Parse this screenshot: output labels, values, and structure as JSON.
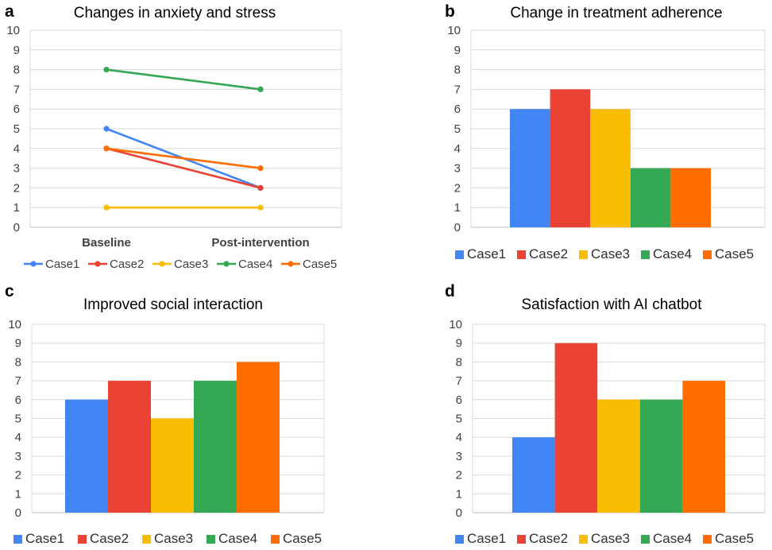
{
  "colors": {
    "Case1": "#4285F4",
    "Case2": "#EA4335",
    "Case3": "#FBBC04",
    "Case4": "#34A853",
    "Case5": "#FF6D01"
  },
  "chart_data": [
    {
      "panel": "a",
      "type": "line",
      "title": "Changes in anxiety and stress",
      "categories": [
        "Baseline",
        "Post-intervention"
      ],
      "ylim": [
        0,
        10
      ],
      "yticks": [
        "0",
        "1",
        "2",
        "3",
        "4",
        "5",
        "6",
        "7",
        "8",
        "9",
        "10"
      ],
      "series": [
        {
          "name": "Case1",
          "values": [
            5,
            2
          ]
        },
        {
          "name": "Case2",
          "values": [
            4,
            2
          ]
        },
        {
          "name": "Case3",
          "values": [
            1,
            1
          ]
        },
        {
          "name": "Case4",
          "values": [
            8,
            7
          ]
        },
        {
          "name": "Case5",
          "values": [
            4,
            3
          ]
        }
      ],
      "legend": "bottom"
    },
    {
      "panel": "b",
      "type": "bar",
      "title": "Change in treatment adherence",
      "categories": [
        "Case1",
        "Case2",
        "Case3",
        "Case4",
        "Case5"
      ],
      "values": [
        6,
        7,
        6,
        3,
        3
      ],
      "ylim": [
        0,
        10
      ],
      "yticks": [
        "0",
        "1",
        "2",
        "3",
        "4",
        "5",
        "6",
        "7",
        "8",
        "9",
        "10"
      ],
      "legend": "bottom"
    },
    {
      "panel": "c",
      "type": "bar",
      "title": "Improved social interaction",
      "categories": [
        "Case1",
        "Case2",
        "Case3",
        "Case4",
        "Case5"
      ],
      "values": [
        6,
        7,
        5,
        7,
        8
      ],
      "ylim": [
        0,
        10
      ],
      "yticks": [
        "0",
        "1",
        "2",
        "3",
        "4",
        "5",
        "6",
        "7",
        "8",
        "9",
        "10"
      ],
      "legend": "bottom"
    },
    {
      "panel": "d",
      "type": "bar",
      "title": "Satisfaction with AI chatbot",
      "categories": [
        "Case1",
        "Case2",
        "Case3",
        "Case4",
        "Case5"
      ],
      "values": [
        4,
        9,
        6,
        6,
        7
      ],
      "ylim": [
        0,
        10
      ],
      "yticks": [
        "0",
        "1",
        "2",
        "3",
        "4",
        "5",
        "6",
        "7",
        "8",
        "9",
        "10"
      ],
      "legend": "bottom"
    }
  ]
}
